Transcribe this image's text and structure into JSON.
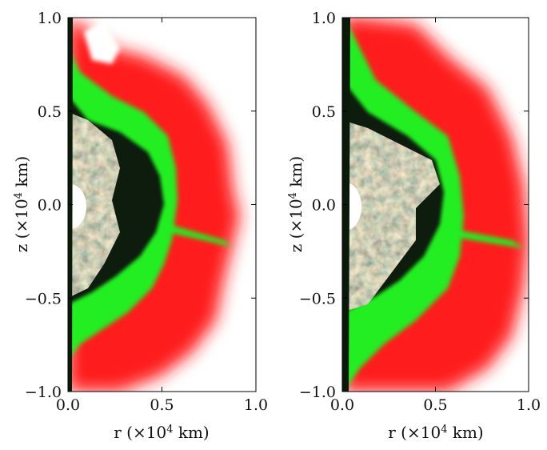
{
  "panels": [
    {
      "x_label": {
        "pre": "r (×10",
        "sup": "4",
        "post": " km)"
      },
      "y_label": {
        "pre": "z (×10",
        "sup": "4",
        "post": " km)"
      },
      "x_ticks": [
        "0.0",
        "0.5",
        "1.0"
      ],
      "y_ticks": [
        "1.0",
        "0.5",
        "0.0",
        "−0.5",
        "−1.0"
      ]
    },
    {
      "x_label": {
        "pre": "r (×10",
        "sup": "4",
        "post": " km)"
      },
      "y_label": {
        "pre": "z (×10",
        "sup": "4",
        "post": " km)"
      },
      "x_ticks": [
        "0.0",
        "0.5",
        "1.0"
      ],
      "y_ticks": [
        "1.0",
        "0.5",
        "0.0",
        "−0.5",
        "−1.0"
      ]
    }
  ],
  "colors": {
    "outer_shell": "#ff1a1a",
    "middle_shell": "#22ee22",
    "inner_core": "#0a1a0a",
    "turbulent_mix": "#6b5a4a",
    "center": "#ffffff"
  }
}
